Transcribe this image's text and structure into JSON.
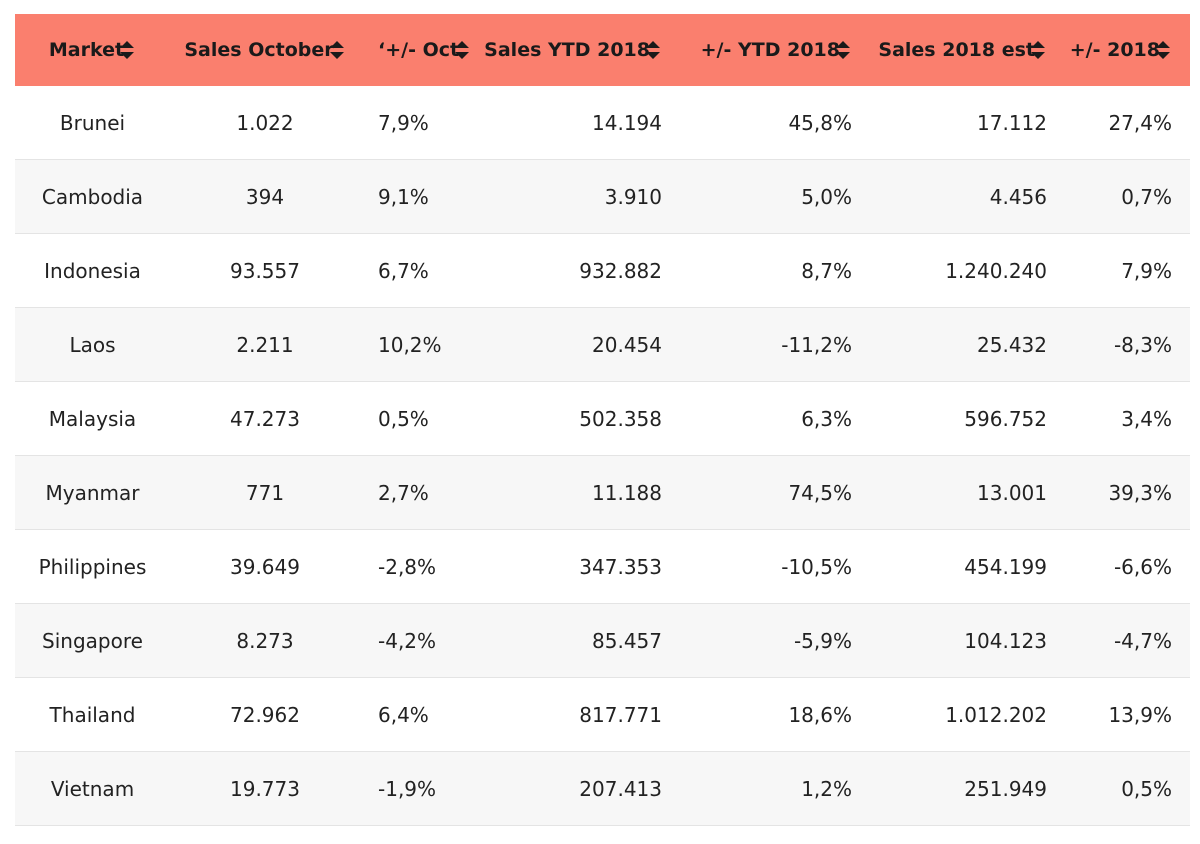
{
  "table": {
    "header": [
      "Market",
      "Sales October",
      "‘+/- Oct",
      "Sales YTD 2018",
      "+/- YTD 2018",
      "Sales 2018 est",
      "+/- 2018"
    ],
    "rows": [
      [
        "Brunei",
        "1.022",
        "7,9%",
        "14.194",
        "45,8%",
        "17.112",
        "27,4%"
      ],
      [
        "Cambodia",
        "394",
        "9,1%",
        "3.910",
        "5,0%",
        "4.456",
        "0,7%"
      ],
      [
        "Indonesia",
        "93.557",
        "6,7%",
        "932.882",
        "8,7%",
        "1.240.240",
        "7,9%"
      ],
      [
        "Laos",
        "2.211",
        "10,2%",
        "20.454",
        "-11,2%",
        "25.432",
        "-8,3%"
      ],
      [
        "Malaysia",
        "47.273",
        "0,5%",
        "502.358",
        "6,3%",
        "596.752",
        "3,4%"
      ],
      [
        "Myanmar",
        "771",
        "2,7%",
        "11.188",
        "74,5%",
        "13.001",
        "39,3%"
      ],
      [
        "Philippines",
        "39.649",
        "-2,8%",
        "347.353",
        "-10,5%",
        "454.199",
        "-6,6%"
      ],
      [
        "Singapore",
        "8.273",
        "-4,2%",
        "85.457",
        "-5,9%",
        "104.123",
        "-4,7%"
      ],
      [
        "Thailand",
        "72.962",
        "6,4%",
        "817.771",
        "18,6%",
        "1.012.202",
        "13,9%"
      ],
      [
        "Vietnam",
        "19.773",
        "-1,9%",
        "207.413",
        "1,2%",
        "251.949",
        "0,5%"
      ]
    ]
  }
}
